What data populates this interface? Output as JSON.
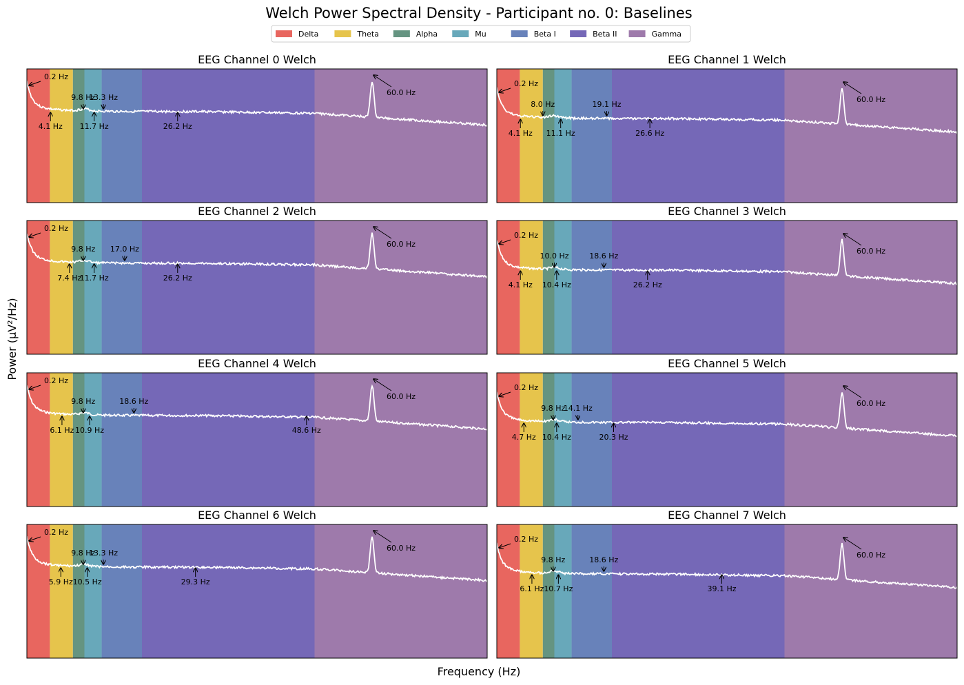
{
  "figure": {
    "title": "Welch Power Spectral Density - Participant no. 0: Baselines",
    "xlabel": "Frequency (Hz)",
    "ylabel": "Power (µV²/Hz)"
  },
  "colors": {
    "Delta": "#e8665f",
    "Theta": "#e6c44c",
    "Alpha": "#659481",
    "Mu": "#68a8ba",
    "Beta I": "#6882ba",
    "Beta II": "#7568b7",
    "Gamma": "#9e7aab",
    "trace": "#ffffff"
  },
  "legend": {
    "placement": "top-center",
    "entries": [
      "Delta",
      "Theta",
      "Alpha",
      "Mu",
      "Beta I",
      "Beta II",
      "Gamma"
    ]
  },
  "chart_data": {
    "type": "line",
    "xlim": [
      0,
      80
    ],
    "bands": [
      {
        "name": "Delta",
        "range": [
          0,
          4
        ]
      },
      {
        "name": "Theta",
        "range": [
          4,
          8
        ]
      },
      {
        "name": "Alpha",
        "range": [
          8,
          10
        ]
      },
      {
        "name": "Mu",
        "range": [
          10,
          13
        ]
      },
      {
        "name": "Beta I",
        "range": [
          13,
          20
        ]
      },
      {
        "name": "Beta II",
        "range": [
          20,
          50
        ]
      },
      {
        "name": "Gamma",
        "range": [
          50,
          80
        ]
      }
    ],
    "channels": [
      {
        "title": "EEG Channel 0 Welch",
        "peaks": [
          {
            "label": "0.2 Hz",
            "freq": 0.2,
            "pos": "above"
          },
          {
            "label": "4.1 Hz",
            "freq": 4.1,
            "pos": "below"
          },
          {
            "label": "9.8 Hz",
            "freq": 9.8,
            "pos": "above"
          },
          {
            "label": "11.7 Hz",
            "freq": 11.7,
            "pos": "below"
          },
          {
            "label": "13.3 Hz",
            "freq": 13.3,
            "pos": "above"
          },
          {
            "label": "26.2 Hz",
            "freq": 26.2,
            "pos": "below"
          },
          {
            "label": "60.0 Hz",
            "freq": 60.0,
            "pos": "above"
          }
        ]
      },
      {
        "title": "EEG Channel 1 Welch",
        "peaks": [
          {
            "label": "0.2 Hz",
            "freq": 0.2,
            "pos": "above"
          },
          {
            "label": "4.1 Hz",
            "freq": 4.1,
            "pos": "below"
          },
          {
            "label": "8.0 Hz",
            "freq": 8.0,
            "pos": "above"
          },
          {
            "label": "11.1 Hz",
            "freq": 11.1,
            "pos": "below"
          },
          {
            "label": "19.1 Hz",
            "freq": 19.1,
            "pos": "above"
          },
          {
            "label": "26.6 Hz",
            "freq": 26.6,
            "pos": "below"
          },
          {
            "label": "60.0 Hz",
            "freq": 60.0,
            "pos": "above"
          }
        ]
      },
      {
        "title": "EEG Channel 2 Welch",
        "peaks": [
          {
            "label": "0.2 Hz",
            "freq": 0.2,
            "pos": "above"
          },
          {
            "label": "7.4 Hz",
            "freq": 7.4,
            "pos": "below"
          },
          {
            "label": "9.8 Hz",
            "freq": 9.8,
            "pos": "above"
          },
          {
            "label": "11.7 Hz",
            "freq": 11.7,
            "pos": "below"
          },
          {
            "label": "17.0 Hz",
            "freq": 17.0,
            "pos": "above"
          },
          {
            "label": "26.2 Hz",
            "freq": 26.2,
            "pos": "below"
          },
          {
            "label": "60.0 Hz",
            "freq": 60.0,
            "pos": "above"
          }
        ]
      },
      {
        "title": "EEG Channel 3 Welch",
        "peaks": [
          {
            "label": "0.2 Hz",
            "freq": 0.2,
            "pos": "above"
          },
          {
            "label": "4.1 Hz",
            "freq": 4.1,
            "pos": "below"
          },
          {
            "label": "10.0 Hz",
            "freq": 10.0,
            "pos": "above"
          },
          {
            "label": "10.4 Hz",
            "freq": 10.4,
            "pos": "below"
          },
          {
            "label": "18.6 Hz",
            "freq": 18.6,
            "pos": "above"
          },
          {
            "label": "26.2 Hz",
            "freq": 26.2,
            "pos": "below"
          },
          {
            "label": "60.0 Hz",
            "freq": 60.0,
            "pos": "above"
          }
        ]
      },
      {
        "title": "EEG Channel 4 Welch",
        "peaks": [
          {
            "label": "0.2 Hz",
            "freq": 0.2,
            "pos": "above"
          },
          {
            "label": "6.1 Hz",
            "freq": 6.1,
            "pos": "below"
          },
          {
            "label": "9.8 Hz",
            "freq": 9.8,
            "pos": "above"
          },
          {
            "label": "10.9 Hz",
            "freq": 10.9,
            "pos": "below"
          },
          {
            "label": "18.6 Hz",
            "freq": 18.6,
            "pos": "above"
          },
          {
            "label": "48.6 Hz",
            "freq": 48.6,
            "pos": "below"
          },
          {
            "label": "60.0 Hz",
            "freq": 60.0,
            "pos": "above"
          }
        ]
      },
      {
        "title": "EEG Channel 5 Welch",
        "peaks": [
          {
            "label": "0.2 Hz",
            "freq": 0.2,
            "pos": "above"
          },
          {
            "label": "4.7 Hz",
            "freq": 4.7,
            "pos": "below"
          },
          {
            "label": "9.8 Hz",
            "freq": 9.8,
            "pos": "above"
          },
          {
            "label": "10.4 Hz",
            "freq": 10.4,
            "pos": "below"
          },
          {
            "label": "14.1 Hz",
            "freq": 14.1,
            "pos": "above"
          },
          {
            "label": "20.3 Hz",
            "freq": 20.3,
            "pos": "below"
          },
          {
            "label": "60.0 Hz",
            "freq": 60.0,
            "pos": "above"
          }
        ]
      },
      {
        "title": "EEG Channel 6 Welch",
        "peaks": [
          {
            "label": "0.2 Hz",
            "freq": 0.2,
            "pos": "above"
          },
          {
            "label": "5.9 Hz",
            "freq": 5.9,
            "pos": "below"
          },
          {
            "label": "9.8 Hz",
            "freq": 9.8,
            "pos": "above"
          },
          {
            "label": "10.5 Hz",
            "freq": 10.5,
            "pos": "below"
          },
          {
            "label": "13.3 Hz",
            "freq": 13.3,
            "pos": "above"
          },
          {
            "label": "29.3 Hz",
            "freq": 29.3,
            "pos": "below"
          },
          {
            "label": "60.0 Hz",
            "freq": 60.0,
            "pos": "above"
          }
        ]
      },
      {
        "title": "EEG Channel 7 Welch",
        "peaks": [
          {
            "label": "0.2 Hz",
            "freq": 0.2,
            "pos": "above"
          },
          {
            "label": "6.1 Hz",
            "freq": 6.1,
            "pos": "below"
          },
          {
            "label": "9.8 Hz",
            "freq": 9.8,
            "pos": "above"
          },
          {
            "label": "10.7 Hz",
            "freq": 10.7,
            "pos": "below"
          },
          {
            "label": "18.6 Hz",
            "freq": 18.6,
            "pos": "above"
          },
          {
            "label": "39.1 Hz",
            "freq": 39.1,
            "pos": "below"
          },
          {
            "label": "60.0 Hz",
            "freq": 60.0,
            "pos": "above"
          }
        ]
      }
    ]
  }
}
